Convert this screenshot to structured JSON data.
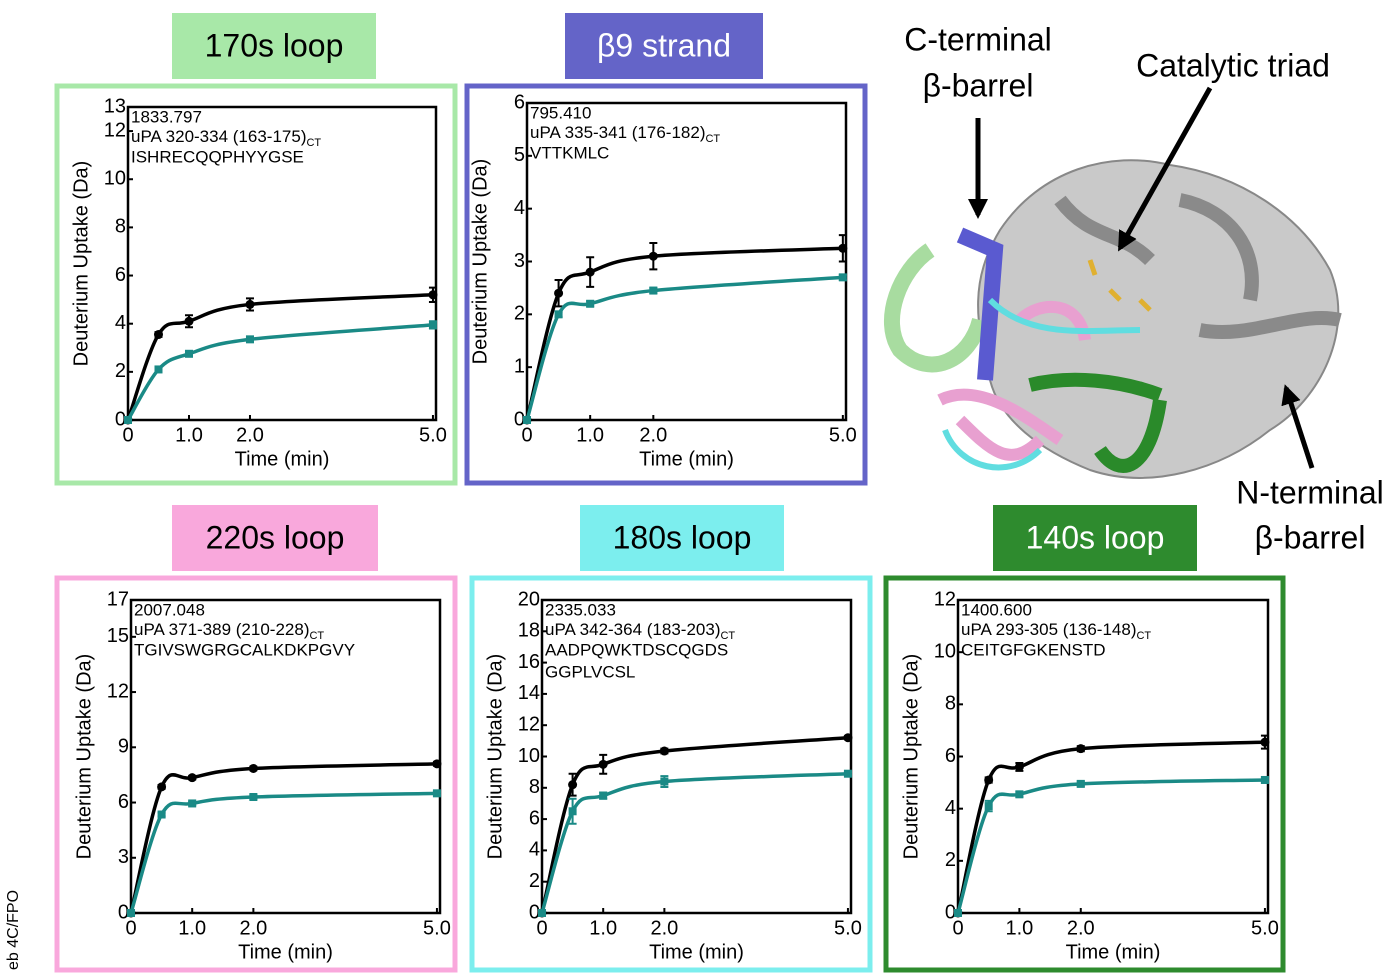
{
  "figure": {
    "structure_labels": {
      "c_terminal": [
        "C-terminal",
        "β-barrel"
      ],
      "catalytic": "Catalytic triad",
      "n_terminal": [
        "N-terminal",
        "β-barrel"
      ]
    },
    "side_note": "eb 4C/FPO"
  },
  "chart_data": [
    {
      "type": "line",
      "title": "170s loop",
      "color": "#a8e8a8",
      "title_color": "#000000",
      "annotation": {
        "mass": "1833.797",
        "peptide": "uPA 320-334 (163-175)",
        "peptide_sub": "CT",
        "sequence": [
          "ISHRECQQPHYYGSE"
        ]
      },
      "xlabel": "Time (min)",
      "ylabel": "Deuterium Uptake (Da)",
      "x": [
        0,
        0.5,
        1,
        2,
        5
      ],
      "xlim": [
        0,
        5.05
      ],
      "xticks": [
        0,
        {
          "value": 1,
          "label": "1.0"
        },
        {
          "value": 2,
          "label": "2.0"
        },
        {
          "value": 5,
          "label": "5.0"
        }
      ],
      "ylim": [
        0,
        13
      ],
      "yticks": [
        0,
        2,
        4,
        6,
        8,
        10,
        12,
        13
      ],
      "series": [
        {
          "color": "#000000",
          "values": [
            0,
            3.55,
            4.1,
            4.8,
            5.2
          ],
          "errors": [
            0,
            0.1,
            0.25,
            0.25,
            0.3
          ]
        },
        {
          "color": "#1a8a86",
          "values": [
            0,
            2.1,
            2.75,
            3.35,
            3.95
          ],
          "errors": [
            0,
            0.1,
            0.1,
            0.1,
            0.15
          ]
        }
      ]
    },
    {
      "type": "line",
      "title": "β9 strand",
      "color": "#6464c8",
      "title_color": "#ffffff",
      "annotation": {
        "mass": "795.410",
        "peptide": "uPA 335-341 (176-182)",
        "peptide_sub": "CT",
        "sequence": [
          "VTTKMLC"
        ]
      },
      "xlabel": "Time (min)",
      "ylabel": "Deuterium Uptake (Da)",
      "x": [
        0,
        0.5,
        1,
        2,
        5
      ],
      "xlim": [
        0,
        5.05
      ],
      "xticks": [
        0,
        {
          "value": 1,
          "label": "1.0"
        },
        {
          "value": 2,
          "label": "2.0"
        },
        {
          "value": 5,
          "label": "5.0"
        }
      ],
      "ylim": [
        0,
        6
      ],
      "yticks": [
        0,
        1,
        2,
        3,
        4,
        5,
        6
      ],
      "series": [
        {
          "color": "#000000",
          "values": [
            0,
            2.4,
            2.8,
            3.1,
            3.25
          ],
          "errors": [
            0,
            0.25,
            0.28,
            0.25,
            0.25
          ]
        },
        {
          "color": "#1a8a86",
          "values": [
            0,
            2.0,
            2.2,
            2.45,
            2.7
          ],
          "errors": [
            0,
            0.05,
            0.05,
            0.05,
            0.05
          ]
        }
      ]
    },
    {
      "type": "line",
      "title": "220s loop",
      "color": "#f9a8dc",
      "title_color": "#000000",
      "annotation": {
        "mass": "2007.048",
        "peptide": "uPA 371-389 (210-228)",
        "peptide_sub": "CT",
        "sequence": [
          "TGIVSWGRGCALKDKPGVY"
        ]
      },
      "xlabel": "Time (min)",
      "ylabel": "Deuterium Uptake (Da)",
      "x": [
        0,
        0.5,
        1,
        2,
        5
      ],
      "xlim": [
        0,
        5.05
      ],
      "xticks": [
        0,
        {
          "value": 1,
          "label": "1.0"
        },
        {
          "value": 2,
          "label": "2.0"
        },
        {
          "value": 5,
          "label": "5.0"
        }
      ],
      "ylim": [
        0,
        17
      ],
      "yticks": [
        0,
        3,
        6,
        9,
        12,
        15,
        17
      ],
      "series": [
        {
          "color": "#000000",
          "values": [
            0,
            6.85,
            7.35,
            7.85,
            8.1
          ],
          "errors": [
            0,
            0.1,
            0.1,
            0.1,
            0.1
          ]
        },
        {
          "color": "#1a8a86",
          "values": [
            0,
            5.35,
            5.95,
            6.3,
            6.5
          ],
          "errors": [
            0,
            0.1,
            0.1,
            0.1,
            0.1
          ]
        }
      ]
    },
    {
      "type": "line",
      "title": "180s loop",
      "color": "#7ceeee",
      "title_color": "#000000",
      "annotation": {
        "mass": "2335.033",
        "peptide": "uPA 342-364 (183-203)",
        "peptide_sub": "CT",
        "sequence": [
          "AADPQWKTDSCQGDS",
          "GGPLVCSL"
        ]
      },
      "xlabel": "Time (min)",
      "ylabel": "Deuterium Uptake (Da)",
      "x": [
        0,
        0.5,
        1,
        2,
        5
      ],
      "xlim": [
        0,
        5.05
      ],
      "xticks": [
        0,
        {
          "value": 1,
          "label": "1.0"
        },
        {
          "value": 2,
          "label": "2.0"
        },
        {
          "value": 5,
          "label": "5.0"
        }
      ],
      "ylim": [
        0,
        20
      ],
      "yticks": [
        0,
        2,
        4,
        6,
        8,
        10,
        12,
        14,
        16,
        18,
        20
      ],
      "series": [
        {
          "color": "#000000",
          "values": [
            0,
            8.2,
            9.5,
            10.35,
            11.2
          ],
          "errors": [
            0,
            0.7,
            0.6,
            0.15,
            0.1
          ]
        },
        {
          "color": "#1a8a86",
          "values": [
            0,
            6.5,
            7.5,
            8.4,
            8.9
          ],
          "errors": [
            0,
            0.8,
            0.2,
            0.35,
            0.1
          ]
        }
      ]
    },
    {
      "type": "line",
      "title": "140s loop",
      "color": "#2e8b2e",
      "title_color": "#ffffff",
      "annotation": {
        "mass": "1400.600",
        "peptide": "uPA 293-305 (136-148)",
        "peptide_sub": "CT",
        "sequence": [
          "CEITGFGKENSTD"
        ]
      },
      "xlabel": "Time (min)",
      "ylabel": "Deuterium Uptake (Da)",
      "x": [
        0,
        0.5,
        1,
        2,
        5
      ],
      "xlim": [
        0,
        5.05
      ],
      "xticks": [
        0,
        {
          "value": 1,
          "label": "1.0"
        },
        {
          "value": 2,
          "label": "2.0"
        },
        {
          "value": 5,
          "label": "5.0"
        }
      ],
      "ylim": [
        0,
        12
      ],
      "yticks": [
        0,
        2,
        4,
        6,
        8,
        10,
        12
      ],
      "series": [
        {
          "color": "#000000",
          "values": [
            0,
            5.1,
            5.6,
            6.3,
            6.55
          ],
          "errors": [
            0,
            0.1,
            0.15,
            0.1,
            0.25
          ]
        },
        {
          "color": "#1a8a86",
          "values": [
            0,
            4.1,
            4.55,
            4.95,
            5.1
          ],
          "errors": [
            0,
            0.2,
            0.1,
            0.1,
            0.1
          ]
        }
      ]
    }
  ]
}
